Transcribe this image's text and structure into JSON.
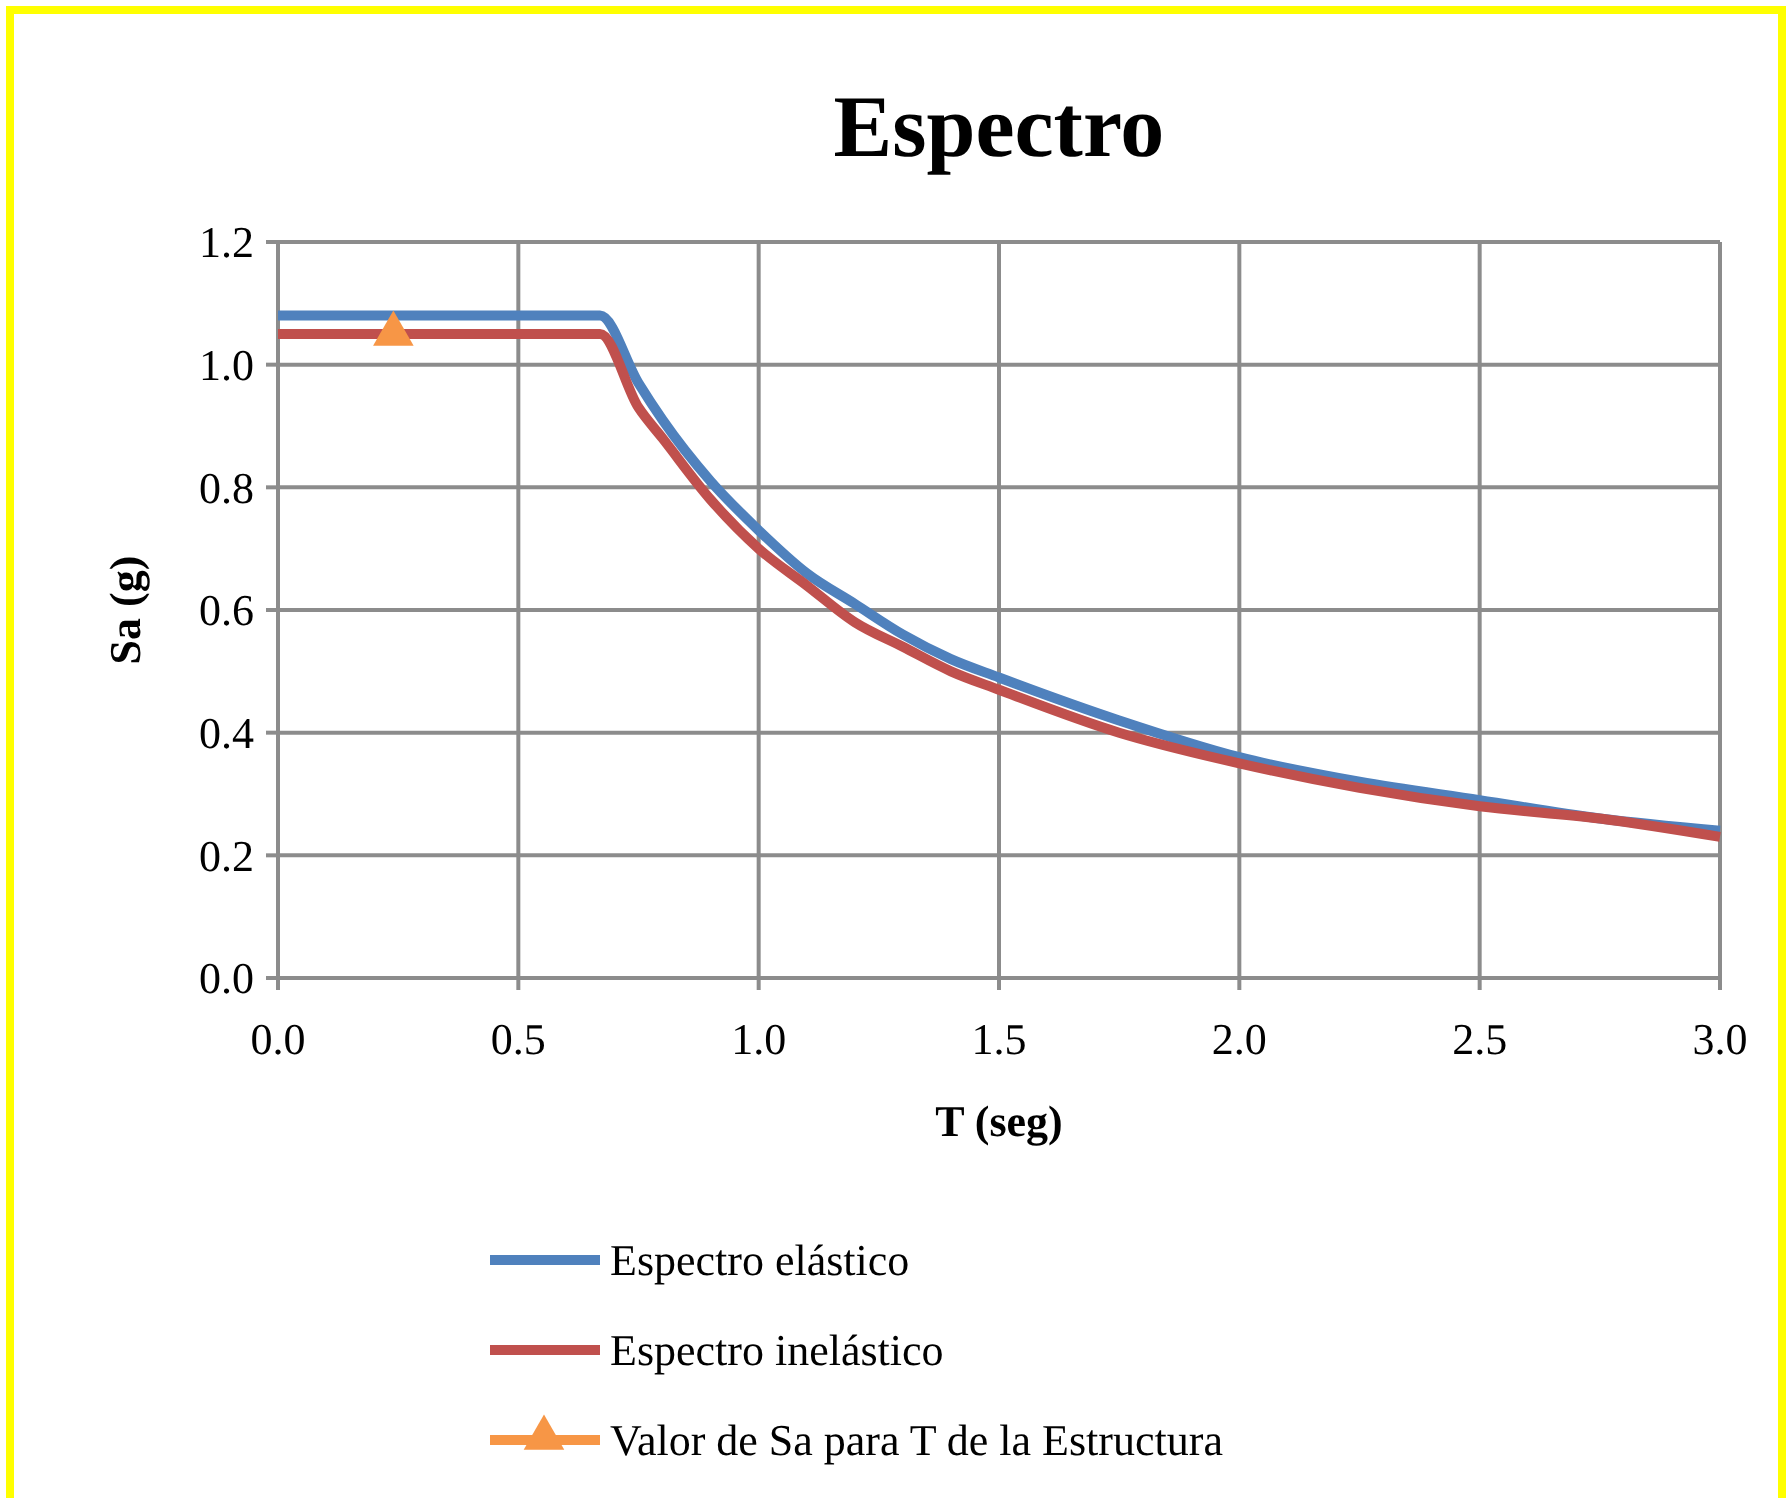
{
  "chart_data": {
    "type": "line",
    "title": "Espectro",
    "xlabel": "T (seg)",
    "ylabel": "Sa (g)",
    "xlim": [
      0,
      3
    ],
    "xticks": [
      {
        "value": 0,
        "label": "0.0"
      },
      {
        "value": 0.5,
        "label": "0.5"
      },
      {
        "value": 1,
        "label": "1.0"
      },
      {
        "value": 1.5,
        "label": "1.5"
      },
      {
        "value": 2,
        "label": "2.0"
      },
      {
        "value": 2.5,
        "label": "2.5"
      },
      {
        "value": 3,
        "label": "3.0"
      }
    ],
    "ylim": [
      0,
      1.2
    ],
    "yticks": [
      {
        "value": 0,
        "label": "0.0"
      },
      {
        "value": 0.2,
        "label": "0.2"
      },
      {
        "value": 0.4,
        "label": "0.4"
      },
      {
        "value": 0.6,
        "label": "0.6"
      },
      {
        "value": 0.8,
        "label": "0.8"
      },
      {
        "value": 1,
        "label": "1.0"
      },
      {
        "value": 1.2,
        "label": "1.2"
      }
    ],
    "grid": true,
    "legend": "bottom",
    "line_style": "solid",
    "series": [
      {
        "name": "Espectro elástico",
        "color": "#4f81bd",
        "marker": "none",
        "x": [
          0,
          0.67,
          0.75,
          0.8,
          0.9,
          1.0,
          1.1,
          1.2,
          1.3,
          1.4,
          1.5,
          1.75,
          2.0,
          2.25,
          2.5,
          2.75,
          3.0
        ],
        "values": [
          1.08,
          1.08,
          0.97,
          0.91,
          0.81,
          0.73,
          0.66,
          0.61,
          0.56,
          0.52,
          0.49,
          0.42,
          0.36,
          0.32,
          0.29,
          0.26,
          0.24
        ]
      },
      {
        "name": "Espectro inelástico",
        "color": "#c0504d",
        "marker": "none",
        "x": [
          0,
          0.67,
          0.75,
          0.8,
          0.9,
          1.0,
          1.1,
          1.2,
          1.3,
          1.4,
          1.5,
          1.75,
          2.0,
          2.25,
          2.5,
          2.75,
          3.0
        ],
        "values": [
          1.05,
          1.05,
          0.93,
          0.88,
          0.78,
          0.7,
          0.64,
          0.58,
          0.54,
          0.5,
          0.47,
          0.4,
          0.35,
          0.31,
          0.28,
          0.26,
          0.23
        ]
      },
      {
        "name": "Valor de Sa para T de la Estructura",
        "color": "#f79646",
        "type": "scatter",
        "marker": "triangle",
        "x": [
          0.24
        ],
        "values": [
          1.05
        ]
      }
    ]
  }
}
